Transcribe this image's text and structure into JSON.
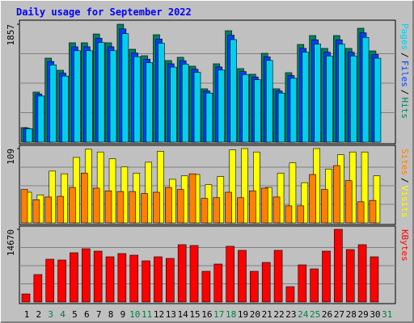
{
  "chart_data": {
    "type": "bar",
    "title": "Daily usage for September 2022",
    "categories": [
      "1",
      "2",
      "3",
      "4",
      "5",
      "6",
      "7",
      "8",
      "9",
      "10",
      "11",
      "12",
      "13",
      "14",
      "15",
      "16",
      "17",
      "18",
      "19",
      "20",
      "21",
      "22",
      "23",
      "24",
      "25",
      "26",
      "27",
      "28",
      "29",
      "30",
      "31"
    ],
    "category_colors": [
      "#000000",
      "#000000",
      "#008040",
      "#008040",
      "#000000",
      "#000000",
      "#000000",
      "#000000",
      "#000000",
      "#008040",
      "#008040",
      "#000000",
      "#000000",
      "#000000",
      "#000000",
      "#000000",
      "#008040",
      "#008040",
      "#000000",
      "#000000",
      "#000000",
      "#000000",
      "#000000",
      "#008040",
      "#008040",
      "#000000",
      "#000000",
      "#000000",
      "#000000",
      "#000000",
      "#008040"
    ],
    "separator": "/",
    "panels": [
      {
        "ylim": [
          0,
          1857
        ],
        "yticks": [
          1857
        ],
        "series": [
          {
            "name": "Hits",
            "color": "#008060",
            "values": [
              229,
              789,
              1323,
              1132,
              1565,
              1565,
              1704,
              1565,
              1857,
              1463,
              1361,
              1692,
              1285,
              1336,
              1196,
              840,
              1234,
              1755,
              1158,
              1069,
              1399,
              840,
              1094,
              1539,
              1679,
              1476,
              1679,
              1476,
              1794,
              1437,
              null
            ]
          },
          {
            "name": "Files",
            "color": "#0040ff",
            "values": [
              220,
              757,
              1270,
              1087,
              1502,
              1502,
              1636,
              1502,
              1783,
              1404,
              1307,
              1624,
              1234,
              1283,
              1148,
              806,
              1185,
              1685,
              1112,
              1026,
              1343,
              806,
              1050,
              1477,
              1612,
              1417,
              1612,
              1417,
              1722,
              1380,
              null
            ]
          },
          {
            "name": "Pages",
            "color": "#00d0f0",
            "values": [
              211,
              726,
              1217,
              1041,
              1440,
              1440,
              1568,
              1440,
              1708,
              1346,
              1252,
              1557,
              1182,
              1229,
              1100,
              773,
              1135,
              1615,
              1065,
              983,
              1287,
              773,
              1006,
              1416,
              1545,
              1358,
              1545,
              1358,
              1650,
              1322,
              null
            ]
          }
        ]
      },
      {
        "ylim": [
          0,
          109
        ],
        "yticks": [
          109
        ],
        "series": [
          {
            "name": "Visits",
            "color": "#ffff00",
            "values": [
              45,
              41,
              76,
              72,
              96,
              108,
              104,
              94,
              82,
              73,
              89,
              105,
              64,
              69,
              71,
              56,
              68,
              107,
              109,
              104,
              52,
              73,
              88,
              59,
              109,
              79,
              100,
              104,
              104,
              69,
              null
            ]
          },
          {
            "name": "Sites",
            "color": "#ff8000",
            "values": [
              49,
              34,
              38,
              39,
              52,
              73,
              51,
              47,
              46,
              46,
              43,
              45,
              52,
              49,
              72,
              36,
              37,
              45,
              37,
              47,
              51,
              38,
              25,
              25,
              71,
              49,
              84,
              62,
              31,
              33,
              null
            ]
          }
        ]
      },
      {
        "ylim": [
          0,
          14670
        ],
        "yticks": [
          14670
        ],
        "series": [
          {
            "name": "KBytes",
            "color": "#ff0000",
            "values": [
              1630,
              5542,
              8639,
              8476,
              9943,
              10758,
              10269,
              9128,
              9780,
              9454,
              8313,
              9128,
              8802,
              11573,
              11410,
              6194,
              7661,
              11247,
              10432,
              6194,
              7987,
              10432,
              3097,
              7498,
              6683,
              10269,
              14670,
              10595,
              11573,
              9128,
              null
            ]
          }
        ]
      }
    ]
  }
}
